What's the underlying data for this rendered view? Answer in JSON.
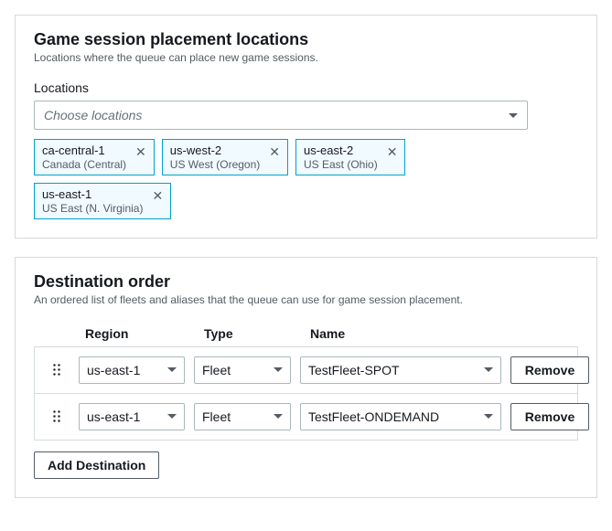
{
  "placement": {
    "title": "Game session placement locations",
    "subtitle": "Locations where the queue can place new game sessions.",
    "locations_label": "Locations",
    "select_placeholder": "Choose locations",
    "tags": [
      {
        "code": "ca-central-1",
        "name": "Canada (Central)"
      },
      {
        "code": "us-west-2",
        "name": "US West (Oregon)"
      },
      {
        "code": "us-east-2",
        "name": "US East (Ohio)"
      },
      {
        "code": "us-east-1",
        "name": "US East (N. Virginia)"
      }
    ]
  },
  "destination": {
    "title": "Destination order",
    "subtitle": "An ordered list of fleets and aliases that the queue can use for game session placement.",
    "columns": {
      "region": "Region",
      "type": "Type",
      "name": "Name"
    },
    "remove_label": "Remove",
    "add_label": "Add Destination",
    "rows": [
      {
        "region": "us-east-1",
        "type": "Fleet",
        "name": "TestFleet-SPOT"
      },
      {
        "region": "us-east-1",
        "type": "Fleet",
        "name": "TestFleet-ONDEMAND"
      }
    ]
  }
}
